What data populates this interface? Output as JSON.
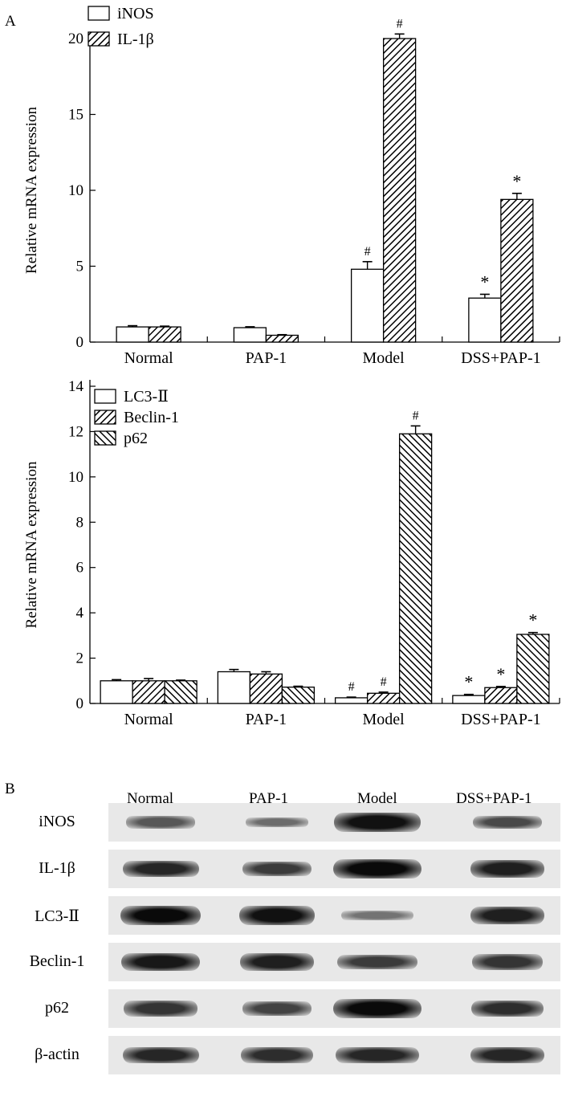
{
  "panel_labels": {
    "a": "A",
    "b": "B"
  },
  "chart_data": [
    {
      "type": "bar",
      "title": "",
      "xlabel": "",
      "ylabel": "Relative mRNA expression",
      "ylim": [
        0,
        20
      ],
      "yticks": [
        0,
        5,
        10,
        15,
        20
      ],
      "categories": [
        "Normal",
        "PAP-1",
        "Model",
        "DSS+PAP-1"
      ],
      "legend_position": "top-left",
      "series": [
        {
          "name": "iNOS",
          "pattern": "open",
          "values": [
            1.0,
            0.95,
            4.8,
            2.9
          ],
          "errors": [
            0.08,
            0.06,
            0.5,
            0.25
          ],
          "marks": [
            "",
            "",
            "#",
            "*"
          ]
        },
        {
          "name": "IL-1β",
          "pattern": "hatch",
          "values": [
            1.0,
            0.45,
            20.0,
            9.4
          ],
          "errors": [
            0.05,
            0.04,
            0.3,
            0.4
          ],
          "marks": [
            "",
            "",
            "#",
            "*"
          ]
        }
      ]
    },
    {
      "type": "bar",
      "title": "",
      "xlabel": "",
      "ylabel": "Relative mRNA expression",
      "ylim": [
        0,
        14
      ],
      "yticks": [
        0,
        2,
        4,
        6,
        8,
        10,
        12,
        14
      ],
      "categories": [
        "Normal",
        "PAP-1",
        "Model",
        "DSS+PAP-1"
      ],
      "legend_position": "top-left",
      "series": [
        {
          "name": "LC3-Ⅱ",
          "pattern": "open",
          "values": [
            1.0,
            1.4,
            0.25,
            0.35
          ],
          "errors": [
            0.05,
            0.1,
            0.03,
            0.05
          ],
          "marks": [
            "",
            "",
            "#",
            "*"
          ]
        },
        {
          "name": "Beclin-1",
          "pattern": "hatch",
          "values": [
            1.0,
            1.3,
            0.45,
            0.7
          ],
          "errors": [
            0.1,
            0.1,
            0.05,
            0.05
          ],
          "marks": [
            "",
            "",
            "#",
            "*"
          ]
        },
        {
          "name": "p62",
          "pattern": "backhatch",
          "values": [
            1.0,
            0.72,
            11.9,
            3.05
          ],
          "errors": [
            0.03,
            0.04,
            0.35,
            0.08
          ],
          "marks": [
            "",
            "",
            "#",
            "*"
          ]
        }
      ]
    }
  ],
  "blot": {
    "lanes": [
      "Normal",
      "PAP-1",
      "Model",
      "DSS+PAP-1"
    ],
    "rows": [
      {
        "label": "iNOS",
        "intensity": [
          0.45,
          0.3,
          0.95,
          0.55
        ]
      },
      {
        "label": "IL-1β",
        "intensity": [
          0.8,
          0.65,
          1.0,
          0.85
        ]
      },
      {
        "label": "LC3-Ⅱ",
        "intensity": [
          1.0,
          0.95,
          0.25,
          0.85
        ]
      },
      {
        "label": "Beclin-1",
        "intensity": [
          0.9,
          0.85,
          0.65,
          0.7
        ]
      },
      {
        "label": "p62",
        "intensity": [
          0.7,
          0.6,
          1.0,
          0.75
        ]
      },
      {
        "label": "β-actin",
        "intensity": [
          0.8,
          0.75,
          0.8,
          0.8
        ]
      }
    ]
  }
}
